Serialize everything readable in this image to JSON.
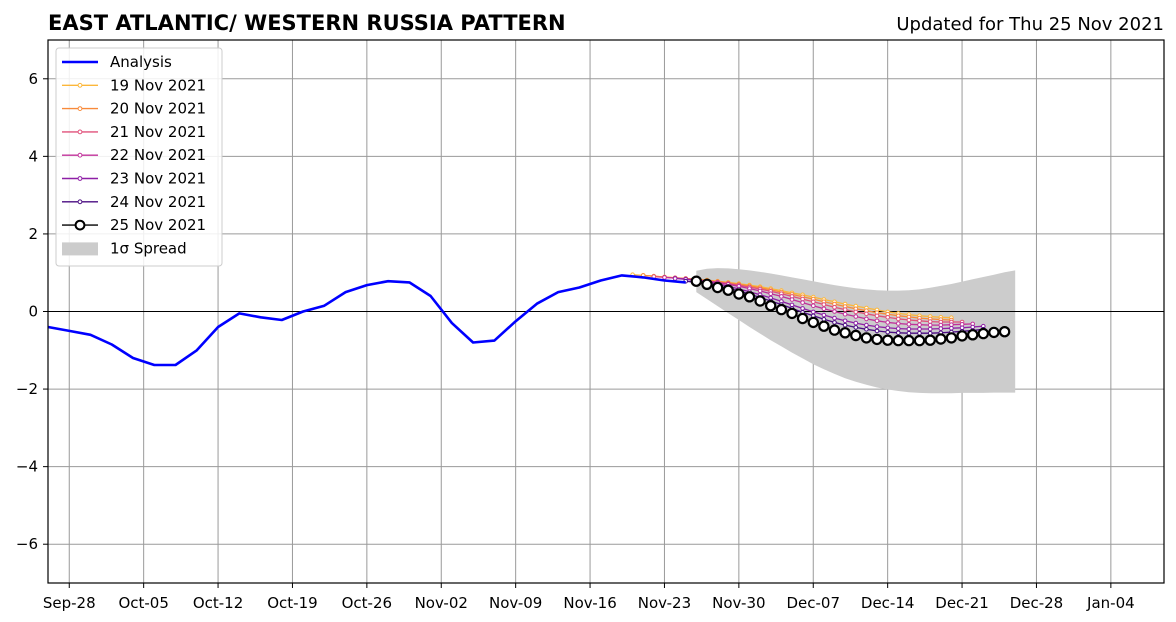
{
  "chart_data": {
    "type": "line",
    "title": "EAST ATLANTIC/ WESTERN RUSSIA PATTERN",
    "subtitle": "Updated for Thu 25 Nov 2021",
    "xlim": [
      "2021-09-26",
      "2022-01-09"
    ],
    "ylim": [
      -7,
      7
    ],
    "yticks": [
      -6,
      -4,
      -2,
      0,
      2,
      4,
      6
    ],
    "ytick_labels": [
      "−6",
      "−4",
      "−2",
      "0",
      "2",
      "4",
      "6"
    ],
    "xticks": [
      "2021-09-28",
      "2021-10-05",
      "2021-10-12",
      "2021-10-19",
      "2021-10-26",
      "2021-11-02",
      "2021-11-09",
      "2021-11-16",
      "2021-11-23",
      "2021-11-30",
      "2021-12-07",
      "2021-12-14",
      "2021-12-21",
      "2021-12-28",
      "2022-01-04"
    ],
    "xtick_labels": [
      "Sep-28",
      "Oct-05",
      "Oct-12",
      "Oct-19",
      "Oct-26",
      "Nov-02",
      "Nov-09",
      "Nov-16",
      "Nov-23",
      "Nov-30",
      "Dec-07",
      "Dec-14",
      "Dec-21",
      "Dec-28",
      "Jan-04"
    ],
    "grid": true,
    "legend_position": "upper-left",
    "analysis": {
      "name": "Analysis",
      "color": "#0000ff",
      "points": [
        [
          "2021-09-26",
          -0.4
        ],
        [
          "2021-09-28",
          -0.5
        ],
        [
          "2021-09-30",
          -0.6
        ],
        [
          "2021-10-02",
          -0.85
        ],
        [
          "2021-10-04",
          -1.2
        ],
        [
          "2021-10-06",
          -1.38
        ],
        [
          "2021-10-08",
          -1.38
        ],
        [
          "2021-10-10",
          -1.0
        ],
        [
          "2021-10-12",
          -0.4
        ],
        [
          "2021-10-14",
          -0.05
        ],
        [
          "2021-10-16",
          -0.15
        ],
        [
          "2021-10-18",
          -0.22
        ],
        [
          "2021-10-20",
          0.0
        ],
        [
          "2021-10-22",
          0.15
        ],
        [
          "2021-10-24",
          0.5
        ],
        [
          "2021-10-26",
          0.68
        ],
        [
          "2021-10-28",
          0.78
        ],
        [
          "2021-10-30",
          0.75
        ],
        [
          "2021-11-01",
          0.4
        ],
        [
          "2021-11-03",
          -0.3
        ],
        [
          "2021-11-05",
          -0.8
        ],
        [
          "2021-11-07",
          -0.75
        ],
        [
          "2021-11-09",
          -0.25
        ],
        [
          "2021-11-11",
          0.2
        ],
        [
          "2021-11-13",
          0.5
        ],
        [
          "2021-11-15",
          0.62
        ],
        [
          "2021-11-17",
          0.8
        ],
        [
          "2021-11-19",
          0.93
        ],
        [
          "2021-11-21",
          0.88
        ],
        [
          "2021-11-23",
          0.8
        ],
        [
          "2021-11-25",
          0.75
        ]
      ]
    },
    "series": [
      {
        "name": "19 Nov 2021",
        "color": "#fcb73a",
        "start": "2021-11-20",
        "values": [
          0.95,
          0.93,
          0.91,
          0.89,
          0.87,
          0.85,
          0.83,
          0.81,
          0.78,
          0.75,
          0.72,
          0.68,
          0.64,
          0.59,
          0.54,
          0.48,
          0.43,
          0.37,
          0.31,
          0.25,
          0.19,
          0.14,
          0.09,
          0.04,
          -0.01,
          -0.05,
          -0.08,
          -0.11,
          -0.13,
          -0.15,
          -0.16
        ]
      },
      {
        "name": "20 Nov 2021",
        "color": "#f88a3a",
        "start": "2021-11-21",
        "values": [
          0.93,
          0.91,
          0.89,
          0.87,
          0.85,
          0.83,
          0.8,
          0.77,
          0.74,
          0.7,
          0.66,
          0.61,
          0.56,
          0.5,
          0.44,
          0.38,
          0.32,
          0.25,
          0.19,
          0.13,
          0.07,
          0.02,
          -0.03,
          -0.07,
          -0.11,
          -0.14,
          -0.17,
          -0.19,
          -0.21,
          -0.22
        ]
      },
      {
        "name": "21 Nov 2021",
        "color": "#e0507a",
        "start": "2021-11-22",
        "values": [
          0.9,
          0.88,
          0.86,
          0.84,
          0.82,
          0.79,
          0.76,
          0.72,
          0.68,
          0.63,
          0.58,
          0.52,
          0.46,
          0.39,
          0.32,
          0.25,
          0.18,
          0.11,
          0.05,
          -0.01,
          -0.06,
          -0.11,
          -0.15,
          -0.19,
          -0.22,
          -0.24,
          -0.26,
          -0.27,
          -0.27,
          -0.27
        ]
      },
      {
        "name": "22 Nov 2021",
        "color": "#c1309a",
        "start": "2021-11-23",
        "values": [
          0.88,
          0.86,
          0.84,
          0.81,
          0.78,
          0.74,
          0.7,
          0.65,
          0.59,
          0.53,
          0.46,
          0.39,
          0.31,
          0.23,
          0.15,
          0.07,
          0.0,
          -0.07,
          -0.13,
          -0.19,
          -0.24,
          -0.28,
          -0.31,
          -0.33,
          -0.34,
          -0.35,
          -0.35,
          -0.34,
          -0.33,
          -0.32
        ]
      },
      {
        "name": "23 Nov 2021",
        "color": "#8e1fa6",
        "start": "2021-11-24",
        "values": [
          0.85,
          0.83,
          0.8,
          0.76,
          0.71,
          0.65,
          0.58,
          0.51,
          0.43,
          0.35,
          0.26,
          0.17,
          0.08,
          -0.01,
          -0.09,
          -0.17,
          -0.24,
          -0.3,
          -0.35,
          -0.39,
          -0.42,
          -0.44,
          -0.45,
          -0.45,
          -0.45,
          -0.44,
          -0.43,
          -0.42,
          -0.4,
          -0.38
        ]
      },
      {
        "name": "24 Nov 2021",
        "color": "#4a0c82",
        "start": "2021-11-25",
        "values": [
          0.78,
          0.75,
          0.71,
          0.66,
          0.6,
          0.53,
          0.45,
          0.36,
          0.27,
          0.18,
          0.08,
          -0.02,
          -0.11,
          -0.2,
          -0.28,
          -0.35,
          -0.41,
          -0.46,
          -0.5,
          -0.53,
          -0.55,
          -0.56,
          -0.56,
          -0.56,
          -0.55,
          -0.53,
          -0.51,
          -0.49,
          -0.46
        ]
      },
      {
        "name": "25 Nov 2021",
        "color": "#000000",
        "start": "2021-11-26",
        "values": [
          0.78,
          0.7,
          0.62,
          0.55,
          0.45,
          0.38,
          0.27,
          0.15,
          0.05,
          -0.05,
          -0.18,
          -0.28,
          -0.38,
          -0.48,
          -0.55,
          -0.62,
          -0.68,
          -0.72,
          -0.74,
          -0.75,
          -0.75,
          -0.75,
          -0.74,
          -0.71,
          -0.68,
          -0.63,
          -0.6,
          -0.57,
          -0.54,
          -0.52
        ]
      }
    ],
    "spread": {
      "name": "1σ Spread",
      "color": "#cccccc",
      "start": "2021-11-26",
      "upper": [
        1.05,
        1.1,
        1.12,
        1.11,
        1.09,
        1.06,
        1.02,
        0.98,
        0.93,
        0.88,
        0.83,
        0.78,
        0.73,
        0.68,
        0.64,
        0.6,
        0.57,
        0.55,
        0.54,
        0.54,
        0.55,
        0.57,
        0.61,
        0.66,
        0.71,
        0.77,
        0.83,
        0.89,
        0.95,
        1.01,
        1.06
      ],
      "lower": [
        0.5,
        0.32,
        0.14,
        -0.04,
        -0.22,
        -0.4,
        -0.57,
        -0.74,
        -0.9,
        -1.06,
        -1.21,
        -1.36,
        -1.49,
        -1.61,
        -1.72,
        -1.81,
        -1.89,
        -1.96,
        -2.01,
        -2.05,
        -2.08,
        -2.1,
        -2.11,
        -2.11,
        -2.11,
        -2.1,
        -2.1,
        -2.1,
        -2.09,
        -2.09,
        -2.09
      ]
    }
  }
}
